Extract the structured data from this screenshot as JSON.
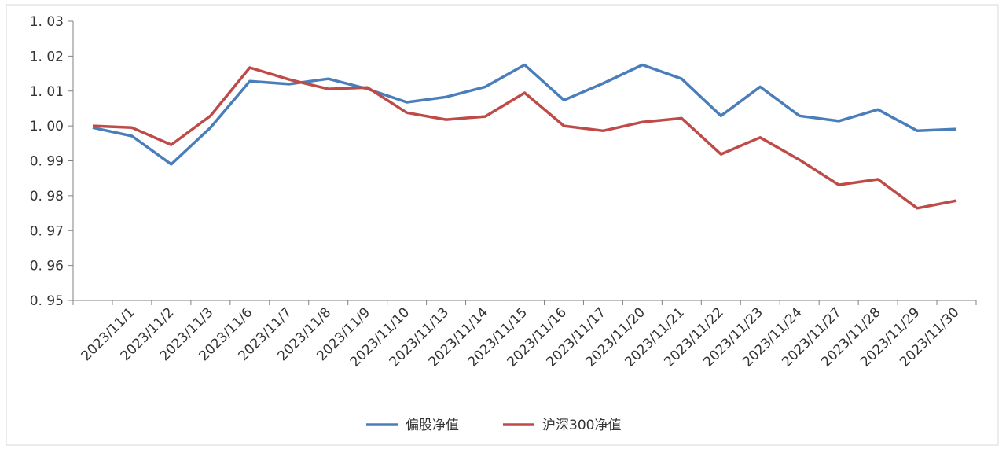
{
  "chart_data": {
    "type": "line",
    "categories": [
      null,
      "2023/11/1",
      "2023/11/2",
      "2023/11/3",
      "2023/11/6",
      "2023/11/7",
      "2023/11/8",
      "2023/11/9",
      "2023/11/10",
      "2023/11/13",
      "2023/11/14",
      "2023/11/15",
      "2023/11/16",
      "2023/11/17",
      "2023/11/20",
      "2023/11/21",
      "2023/11/22",
      "2023/11/23",
      "2023/11/24",
      "2023/11/27",
      "2023/11/28",
      "2023/11/29",
      "2023/11/30"
    ],
    "series": [
      {
        "name": "偏股净值",
        "color": "#4a7ebb",
        "values": [
          0.9995,
          0.9971,
          0.989,
          0.9995,
          1.0128,
          1.012,
          1.0135,
          1.0106,
          1.0068,
          1.0083,
          1.0112,
          1.0175,
          1.0074,
          1.0122,
          1.0175,
          1.0135,
          1.0029,
          1.0112,
          1.0029,
          1.0014,
          1.0047,
          0.9986,
          0.9991
        ]
      },
      {
        "name": "沪深300净值",
        "color": "#be4b48",
        "values": [
          1.0,
          0.9995,
          0.9946,
          1.0029,
          1.0167,
          1.0133,
          1.0106,
          1.011,
          1.0038,
          1.0018,
          1.0027,
          1.0095,
          1.0,
          0.9986,
          1.0011,
          1.0022,
          0.9919,
          0.9967,
          0.9903,
          0.9831,
          0.9847,
          0.9764,
          0.9786
        ]
      }
    ],
    "ylim": [
      0.95,
      1.03
    ],
    "yticks": [
      {
        "value": 0.95,
        "label": "0. 95"
      },
      {
        "value": 0.96,
        "label": "0. 96"
      },
      {
        "value": 0.97,
        "label": "0. 97"
      },
      {
        "value": 0.98,
        "label": "0. 98"
      },
      {
        "value": 0.99,
        "label": "0. 99"
      },
      {
        "value": 1.0,
        "label": "1. 00"
      },
      {
        "value": 1.01,
        "label": "1. 01"
      },
      {
        "value": 1.02,
        "label": "1. 02"
      },
      {
        "value": 1.03,
        "label": "1. 03"
      }
    ],
    "legend": "bottom"
  }
}
